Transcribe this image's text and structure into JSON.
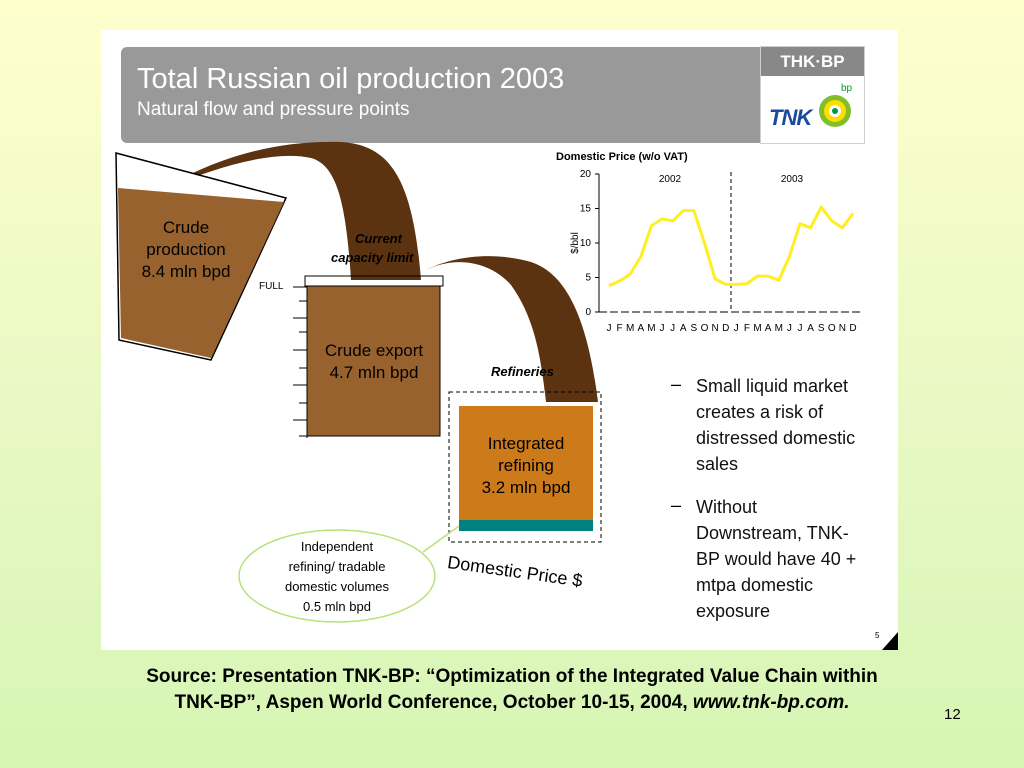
{
  "slide": {
    "title": "Total Russian oil production 2003",
    "subtitle": "Natural flow and pressure points",
    "logo_text": "THK·BP",
    "logo_tnk": "TNK",
    "logo_bp": "bp",
    "inner_slide_number": "5",
    "page_number": "12"
  },
  "diagram": {
    "crude_production": [
      "Crude",
      "production",
      "8.4 mln bpd"
    ],
    "current_capacity": [
      "Current",
      "capacity limit"
    ],
    "full_label": "FULL",
    "crude_export": [
      "Crude export",
      "4.7 mln bpd"
    ],
    "refineries_label": "Refineries",
    "integrated_refining": [
      "Integrated",
      "refining",
      "3.2 mln bpd"
    ],
    "independent_refining": [
      "Independent",
      "refining/ tradable",
      "domestic volumes",
      "0.5 mln bpd"
    ],
    "domestic_price_label": "Domestic Price $",
    "colors": {
      "flow": "#5c3310",
      "crude_box": "#98622f",
      "refining_box": "#cc7a1a",
      "independent_band": "#00807f",
      "callout_border": "#b7e27a"
    }
  },
  "chart_data": {
    "type": "line",
    "title": "Domestic Price (w/o VAT)",
    "xlabel": "",
    "ylabel": "$/bbl",
    "ylim": [
      0,
      20
    ],
    "yticks": [
      0,
      5,
      10,
      15,
      20
    ],
    "categories": [
      "J",
      "F",
      "M",
      "A",
      "M",
      "J",
      "J",
      "A",
      "S",
      "O",
      "N",
      "D",
      "J",
      "F",
      "M",
      "A",
      "M",
      "J",
      "J",
      "A",
      "S",
      "O",
      "N",
      "D"
    ],
    "year_labels": [
      "2002",
      "2003"
    ],
    "series": [
      {
        "color": "#ffee22",
        "values": [
          3.8,
          4.5,
          5.5,
          8,
          12.5,
          13.5,
          13.2,
          14.7,
          14.7,
          10,
          4.8,
          4,
          4,
          4.1,
          5.2,
          5.2,
          4.6,
          8,
          12.8,
          12.2,
          15.2,
          13.2,
          12.2,
          14.3
        ]
      }
    ],
    "divider_after_index": 11,
    "grid": false
  },
  "bullets": [
    {
      "dash": "–",
      "lines": [
        "Small liquid market",
        "creates a risk of",
        "distressed domestic",
        "sales"
      ]
    },
    {
      "dash": "–",
      "lines": [
        "Without",
        "Downstream, TNK-",
        "BP would have 40 +",
        "mtpa domestic",
        "exposure"
      ]
    }
  ],
  "footnote": {
    "line1": "Source:  Presentation TNK-BP: “Optimization of the Integrated Value Chain within",
    "line2": "TNK-BP”, Aspen World Conference, October 10-15, 2004, ",
    "link": "www.tnk-bp.com."
  }
}
